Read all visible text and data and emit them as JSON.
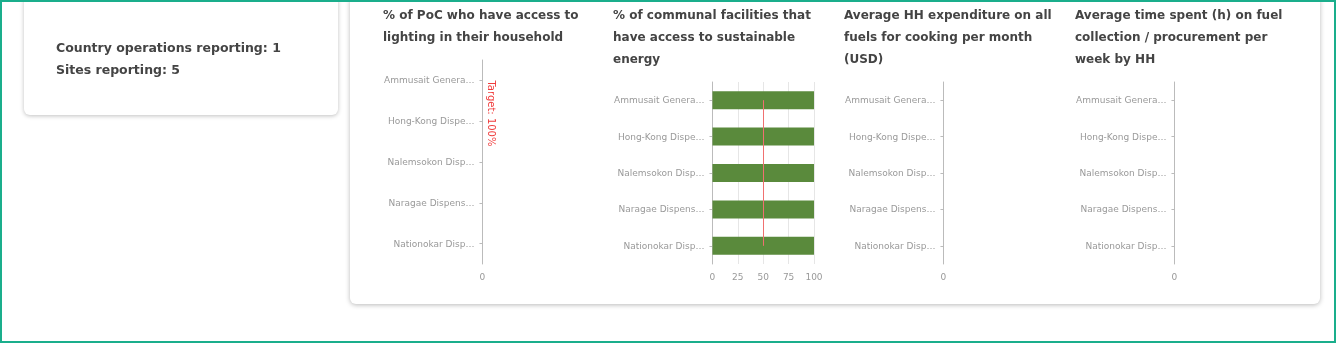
{
  "chart_data": [
    {
      "type": "other",
      "annotations": [
        "Country operations reporting: 1",
        "Sites reporting: 5"
      ]
    },
    {
      "type": "other",
      "title": "% of PoC who have access to lighting in their household",
      "categories": [
        "Ammusait Genera…",
        "Hong-Kong Dispe…",
        "Nalemsokon Disp…",
        "Naragae Dispens…",
        "Nationokar Disp…"
      ],
      "annotations": [
        "0",
        "Target: 100%"
      ]
    },
    {
      "type": "bar",
      "orientation": "horizontal",
      "title": "% of communal facilities that have access to sustainable energy",
      "categories": [
        "Ammusait Genera…",
        "Hong-Kong Dispe…",
        "Nalemsokon Disp…",
        "Naragae Dispens…",
        "Nationokar Disp…"
      ],
      "values": [
        100,
        100,
        100,
        100,
        100
      ],
      "color": "#5a8a3c",
      "xlim": [
        0,
        100
      ],
      "xticks": [
        0,
        25,
        50,
        75,
        100
      ],
      "grid": "x",
      "ref_lines": [
        {
          "axis": "x",
          "value": 50,
          "color": "#f07070"
        }
      ]
    },
    {
      "type": "other",
      "title": "Average HH expenditure on all fuels for cooking per month (USD)",
      "categories": [
        "Ammusait Genera…",
        "Hong-Kong Dispe…",
        "Nalemsokon Disp…",
        "Naragae Dispens…",
        "Nationokar Disp…"
      ],
      "annotations": [
        "0"
      ]
    },
    {
      "type": "other",
      "title": "Average time spent (h) on fuel collection / procurement per week by HH",
      "categories": [
        "Ammusait Genera…",
        "Hong-Kong Dispe…",
        "Nalemsokon Disp…",
        "Naragae Dispens…",
        "Nationokar Disp…"
      ],
      "annotations": [
        "0"
      ]
    }
  ]
}
